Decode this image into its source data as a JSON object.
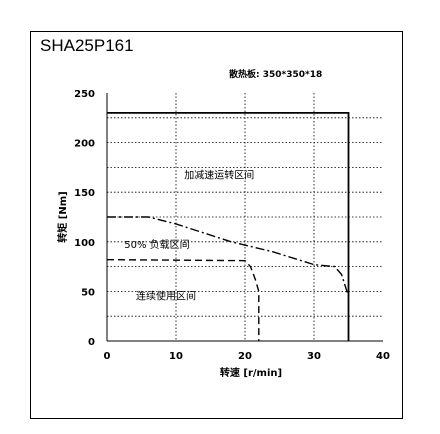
{
  "header": {
    "title": "SHA25P161",
    "note": "散热板: 350*350*18"
  },
  "chart_data": {
    "type": "line",
    "title": "SHA25P161",
    "xlabel": "转速 [r/min]",
    "ylabel": "转矩 [Nm]",
    "xlim": [
      0,
      40
    ],
    "ylim": [
      0,
      250
    ],
    "xticks": [
      0,
      10,
      20,
      30,
      40
    ],
    "yticks": [
      0,
      50,
      100,
      150,
      200,
      250
    ],
    "x_gridlines": [
      10,
      20,
      30
    ],
    "y_gridlines": [
      25,
      50,
      75,
      100,
      125,
      150,
      175,
      200,
      225
    ],
    "grid": "dotted",
    "annotations": [
      {
        "text": "加减速运转区间",
        "x": 11.2,
        "y": 168
      },
      {
        "text": "50% 负载区间",
        "x": 2.5,
        "y": 98
      },
      {
        "text": "连续使用区间",
        "x": 4.2,
        "y": 46
      }
    ],
    "series": [
      {
        "style": "solid",
        "x": [
          0,
          35,
          35
        ],
        "y": [
          230,
          230,
          0
        ]
      },
      {
        "style": "dash-dot",
        "x": [
          0,
          6,
          10,
          18,
          24,
          30,
          33,
          34,
          35
        ],
        "y": [
          125,
          125,
          118,
          100,
          90,
          77,
          75,
          67,
          45
        ]
      },
      {
        "style": "dashed",
        "x": [
          0,
          20,
          20.8,
          21.5,
          22,
          22
        ],
        "y": [
          82,
          81,
          75,
          62,
          50,
          0
        ]
      }
    ]
  }
}
